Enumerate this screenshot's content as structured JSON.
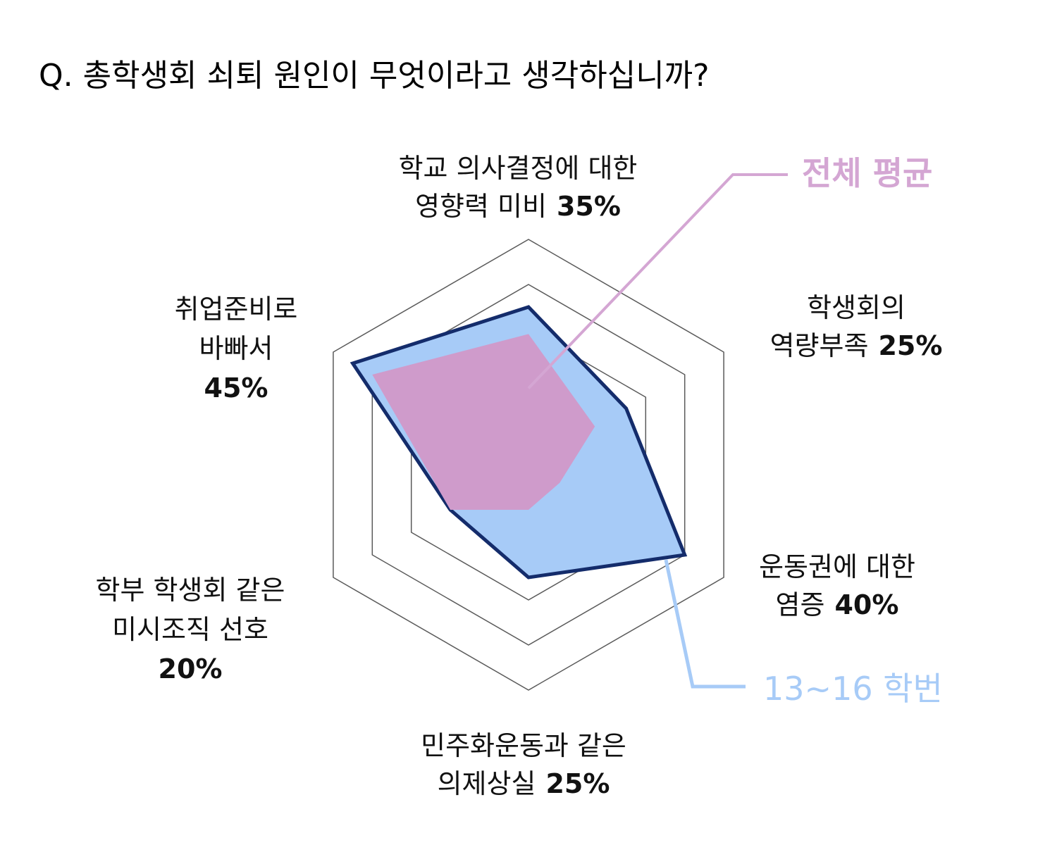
{
  "title": "Q. 총학생회 쇠퇴 원인이 무엇이라고 생각하십니까?",
  "colors": {
    "grid": "#5a5a5a",
    "series_a_fill": "#a7cbf7",
    "series_a_stroke": "#142c6b",
    "series_b_fill": "#cf9bcb",
    "series_b_leader": "#d4a6d3",
    "series_a_leader": "#a7cbf7"
  },
  "chart_data": {
    "type": "radar",
    "title": "Q. 총학생회 쇠퇴 원인이 무엇이라고 생각하십니까?",
    "axes": [
      {
        "lines": [
          "학교 의사결정에 대한",
          "영향력 미비"
        ],
        "value_label": "35%"
      },
      {
        "lines": [
          "학생회의",
          "역량부족"
        ],
        "value_label": "25%"
      },
      {
        "lines": [
          "운동권에 대한",
          "염증"
        ],
        "value_label": "40%"
      },
      {
        "lines": [
          "민주화운동과 같은",
          "의제상실"
        ],
        "value_label": "25%"
      },
      {
        "lines": [
          "학부 학생회 같은",
          "미시조직 선호"
        ],
        "value_label": "20%"
      },
      {
        "lines": [
          "취업준비로",
          "바빠서"
        ],
        "value_label": "45%"
      }
    ],
    "rmax": 50,
    "rings": [
      10,
      20,
      30,
      40,
      50
    ],
    "series": [
      {
        "name": "13~16 학번",
        "values": [
          35,
          25,
          40,
          25,
          20,
          45
        ]
      },
      {
        "name": "전체 평균",
        "values": [
          29,
          17,
          8,
          10,
          20,
          40
        ]
      }
    ]
  }
}
